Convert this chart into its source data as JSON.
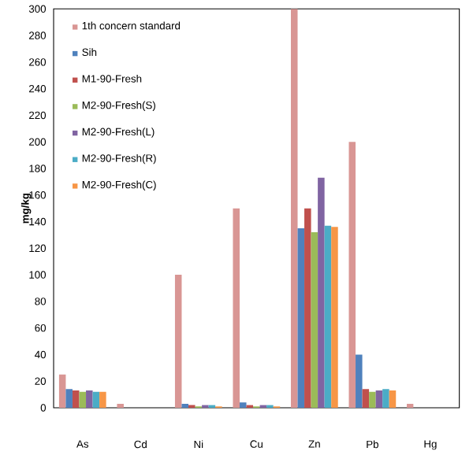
{
  "chart_data": {
    "type": "bar",
    "ylabel": "mg/kg",
    "categories": [
      "As",
      "Cd",
      "Ni",
      "Cu",
      "Zn",
      "Pb",
      "Hg"
    ],
    "series": [
      {
        "name": "1th concern standard",
        "color": "#d99694",
        "values": [
          25,
          3,
          100,
          150,
          300,
          200,
          3
        ]
      },
      {
        "name": "Sih",
        "color": "#4f81bd",
        "values": [
          14,
          0,
          3,
          4,
          135,
          40,
          0
        ]
      },
      {
        "name": "M1-90-Fresh",
        "color": "#c0504d",
        "values": [
          13,
          0,
          2,
          2,
          150,
          14,
          0
        ]
      },
      {
        "name": "M2-90-Fresh(S)",
        "color": "#9bbb59",
        "values": [
          12,
          0,
          1,
          1,
          132,
          12,
          0
        ]
      },
      {
        "name": "M2-90-Fresh(L)",
        "color": "#8064a2",
        "values": [
          13,
          0,
          2,
          2,
          173,
          13,
          0
        ]
      },
      {
        "name": "M2-90-Fresh(R)",
        "color": "#4bacc6",
        "values": [
          12,
          0,
          2,
          2,
          137,
          14,
          0
        ]
      },
      {
        "name": "M2-90-Fresh(C)",
        "color": "#f79646",
        "values": [
          12,
          0,
          1,
          1,
          136,
          13,
          0
        ]
      }
    ],
    "ylim": [
      0,
      300
    ],
    "yticks": [
      0,
      20,
      40,
      60,
      80,
      100,
      120,
      140,
      160,
      180,
      200,
      220,
      240,
      260,
      280,
      300
    ],
    "grid": false,
    "legend": "top left"
  }
}
